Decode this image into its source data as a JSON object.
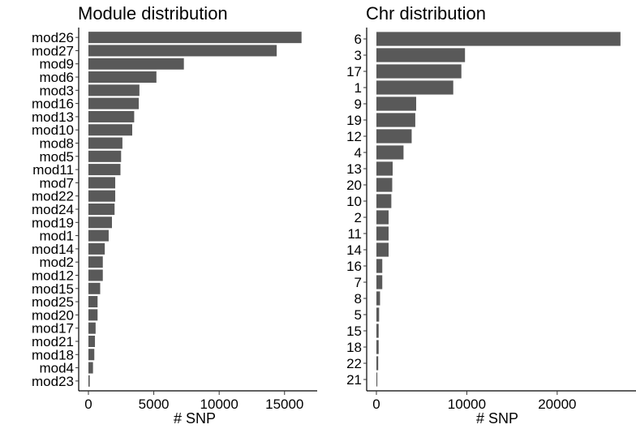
{
  "chart_data": [
    {
      "type": "bar",
      "orientation": "horizontal",
      "title": "Module distribution",
      "xlabel": "# SNP",
      "ylabel": "",
      "xlim": [
        0,
        17000
      ],
      "xticks": [
        0,
        5000,
        10000,
        15000
      ],
      "xtick_labels": [
        "0",
        "5000",
        "10000",
        "15000"
      ],
      "grid": false,
      "categories": [
        "mod26",
        "mod27",
        "mod9",
        "mod6",
        "mod3",
        "mod16",
        "mod13",
        "mod10",
        "mod8",
        "mod5",
        "mod11",
        "mod7",
        "mod22",
        "mod24",
        "mod19",
        "mod1",
        "mod14",
        "mod2",
        "mod12",
        "mod15",
        "mod25",
        "mod20",
        "mod17",
        "mod21",
        "mod18",
        "mod4",
        "mod23"
      ],
      "values": [
        16300,
        14400,
        7300,
        5200,
        3900,
        3850,
        3500,
        3350,
        2600,
        2500,
        2450,
        2050,
        2050,
        2000,
        1800,
        1550,
        1250,
        1100,
        1100,
        900,
        700,
        700,
        550,
        500,
        450,
        350,
        100
      ]
    },
    {
      "type": "bar",
      "orientation": "horizontal",
      "title": "Chr distribution",
      "xlabel": "# SNP",
      "ylabel": "",
      "xlim": [
        0,
        28000
      ],
      "xticks": [
        0,
        10000,
        20000
      ],
      "xtick_labels": [
        "0",
        "10000",
        "20000"
      ],
      "grid": false,
      "categories": [
        "6",
        "3",
        "17",
        "1",
        "9",
        "19",
        "12",
        "4",
        "13",
        "20",
        "10",
        "2",
        "11",
        "14",
        "16",
        "7",
        "8",
        "5",
        "15",
        "18",
        "22",
        "21"
      ],
      "values": [
        27000,
        9800,
        9400,
        8500,
        4400,
        4300,
        3900,
        3000,
        1800,
        1750,
        1650,
        1350,
        1350,
        1350,
        650,
        650,
        400,
        300,
        250,
        250,
        200,
        100
      ]
    }
  ]
}
